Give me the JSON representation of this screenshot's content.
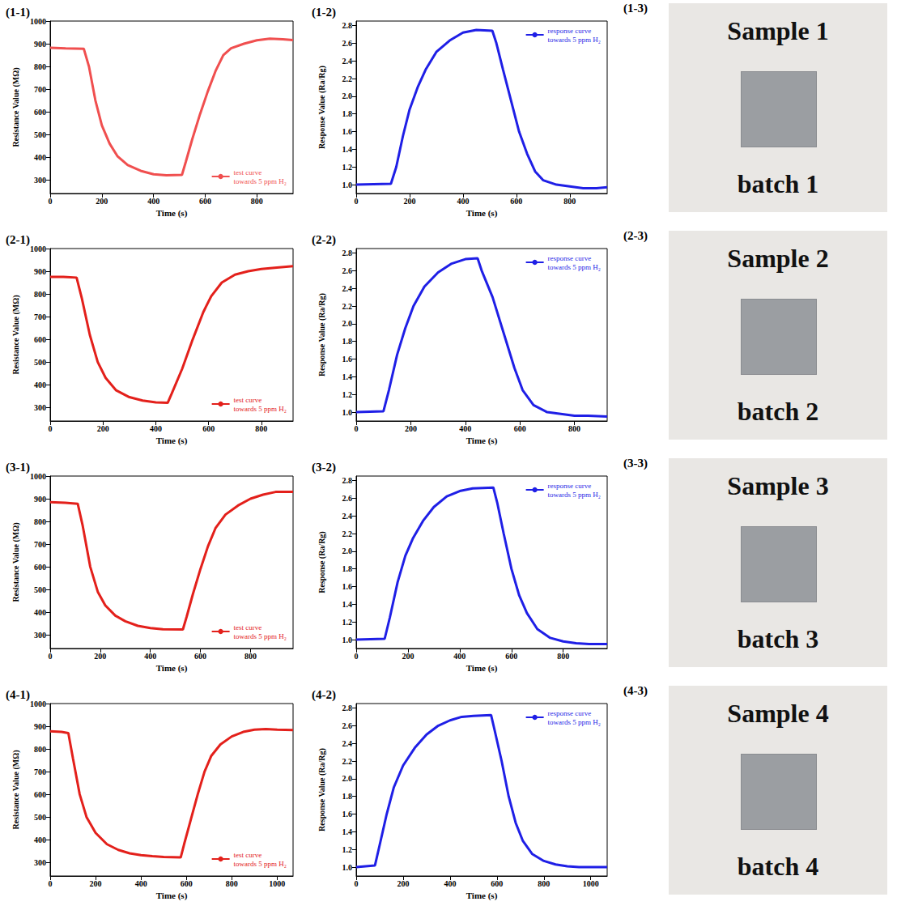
{
  "chart_data": [
    {
      "type": "line",
      "title": "(1-1)",
      "x_label": "Time (s)",
      "y_label": "Resistance Value (MΩ)",
      "xlim": [
        0,
        940
      ],
      "xticks": [
        0,
        200,
        400,
        600,
        800
      ],
      "ylim": [
        240,
        1000
      ],
      "yticks": [
        300,
        400,
        500,
        600,
        700,
        800,
        900,
        1000
      ],
      "legend": "lower right",
      "x": [
        0,
        60,
        130,
        150,
        175,
        200,
        230,
        260,
        300,
        350,
        400,
        450,
        510,
        525,
        550,
        580,
        610,
        640,
        670,
        700,
        750,
        800,
        850,
        900,
        940
      ],
      "series": [
        {
          "name": "test curve towards 5 ppm H₂",
          "color": "#f04f4f",
          "values": [
            882,
            880,
            878,
            800,
            650,
            540,
            460,
            405,
            365,
            340,
            325,
            320,
            322,
            380,
            480,
            590,
            690,
            780,
            850,
            880,
            900,
            915,
            922,
            920,
            916
          ]
        }
      ]
    },
    {
      "type": "line",
      "title": "(1-2)",
      "x_label": "Time (s)",
      "y_label": "Response Value (Ra/Rg)",
      "xlim": [
        0,
        940
      ],
      "xticks": [
        0,
        200,
        400,
        600,
        800
      ],
      "ylim": [
        0.9,
        2.85
      ],
      "yticks": [
        {
          "value": 1,
          "label": "1.0"
        },
        {
          "value": 1.2,
          "label": "1.2"
        },
        {
          "value": 1.4,
          "label": "1.4"
        },
        {
          "value": 1.6,
          "label": "1.6"
        },
        {
          "value": 1.8,
          "label": "1.8"
        },
        {
          "value": 2,
          "label": "2.0"
        },
        {
          "value": 2.2,
          "label": "2.2"
        },
        {
          "value": 2.4,
          "label": "2.4"
        },
        {
          "value": 2.6,
          "label": "2.6"
        },
        {
          "value": 2.8,
          "label": "2.8"
        }
      ],
      "legend": "upper right",
      "x": [
        0,
        130,
        150,
        175,
        200,
        230,
        260,
        300,
        350,
        400,
        450,
        510,
        525,
        550,
        580,
        610,
        640,
        670,
        700,
        750,
        800,
        850,
        900,
        940
      ],
      "series": [
        {
          "name": "response curve towards 5 ppm H₂",
          "color": "#1f1fe6",
          "values": [
            1.0,
            1.01,
            1.2,
            1.55,
            1.85,
            2.1,
            2.3,
            2.5,
            2.63,
            2.72,
            2.75,
            2.74,
            2.6,
            2.3,
            1.95,
            1.6,
            1.35,
            1.15,
            1.05,
            1.0,
            0.98,
            0.96,
            0.96,
            0.97
          ]
        }
      ]
    },
    {
      "type": "line",
      "title": "(2-1)",
      "x_label": "Time (s)",
      "y_label": "Resistance Value (MΩ)",
      "xlim": [
        0,
        920
      ],
      "xticks": [
        0,
        200,
        400,
        600,
        800
      ],
      "ylim": [
        240,
        1000
      ],
      "yticks": [
        300,
        400,
        500,
        600,
        700,
        800,
        900,
        1000
      ],
      "legend": "lower right",
      "x": [
        0,
        50,
        100,
        120,
        150,
        180,
        210,
        250,
        300,
        350,
        400,
        445,
        460,
        500,
        540,
        580,
        610,
        650,
        700,
        750,
        800,
        850,
        920
      ],
      "series": [
        {
          "name": "test curve towards 5 ppm H₂",
          "color": "#e3201b",
          "values": [
            875,
            875,
            872,
            780,
            620,
            500,
            430,
            375,
            345,
            330,
            322,
            320,
            360,
            470,
            600,
            720,
            790,
            850,
            885,
            900,
            910,
            915,
            922
          ]
        }
      ]
    },
    {
      "type": "line",
      "title": "(2-2)",
      "x_label": "Time (s)",
      "y_label": "Response Value (Ra/Rg)",
      "xlim": [
        0,
        920
      ],
      "xticks": [
        0,
        200,
        400,
        600,
        800
      ],
      "ylim": [
        0.9,
        2.85
      ],
      "yticks": [
        {
          "value": 1,
          "label": "1.0"
        },
        {
          "value": 1.2,
          "label": "1.2"
        },
        {
          "value": 1.4,
          "label": "1.4"
        },
        {
          "value": 1.6,
          "label": "1.6"
        },
        {
          "value": 1.8,
          "label": "1.8"
        },
        {
          "value": 2,
          "label": "2.0"
        },
        {
          "value": 2.2,
          "label": "2.2"
        },
        {
          "value": 2.4,
          "label": "2.4"
        },
        {
          "value": 2.6,
          "label": "2.6"
        },
        {
          "value": 2.8,
          "label": "2.8"
        }
      ],
      "legend": "upper right",
      "x": [
        0,
        100,
        120,
        150,
        180,
        210,
        250,
        300,
        350,
        400,
        445,
        460,
        500,
        540,
        580,
        610,
        650,
        700,
        750,
        800,
        850,
        920
      ],
      "series": [
        {
          "name": "response curve towards 5 ppm H₂",
          "color": "#1f1fe6",
          "values": [
            1.0,
            1.01,
            1.25,
            1.65,
            1.95,
            2.2,
            2.42,
            2.58,
            2.68,
            2.73,
            2.74,
            2.6,
            2.3,
            1.9,
            1.5,
            1.25,
            1.08,
            1.0,
            0.98,
            0.96,
            0.96,
            0.95
          ]
        }
      ]
    },
    {
      "type": "line",
      "title": "(3-1)",
      "x_label": "Time (s)",
      "y_label": "Resistance Value (MΩ)",
      "xlim": [
        0,
        970
      ],
      "xticks": [
        0,
        200,
        400,
        600,
        800
      ],
      "ylim": [
        240,
        1000
      ],
      "yticks": [
        300,
        400,
        500,
        600,
        700,
        800,
        900,
        1000
      ],
      "legend": "lower right",
      "x": [
        0,
        60,
        110,
        130,
        160,
        190,
        220,
        260,
        300,
        350,
        400,
        450,
        530,
        545,
        570,
        600,
        630,
        660,
        700,
        750,
        800,
        850,
        900,
        970
      ],
      "series": [
        {
          "name": "test curve towards 5 ppm H₂",
          "color": "#e3201b",
          "values": [
            885,
            882,
            878,
            780,
            600,
            490,
            430,
            385,
            360,
            340,
            330,
            325,
            324,
            380,
            480,
            590,
            690,
            770,
            830,
            870,
            900,
            918,
            930,
            930
          ]
        }
      ]
    },
    {
      "type": "line",
      "title": "(3-2)",
      "x_label": "Time (s)",
      "y_label": "Response (Ra/Rg)",
      "xlim": [
        0,
        970
      ],
      "xticks": [
        0,
        200,
        400,
        600,
        800
      ],
      "ylim": [
        0.9,
        2.85
      ],
      "yticks": [
        {
          "value": 1,
          "label": "1.0"
        },
        {
          "value": 1.2,
          "label": "1.2"
        },
        {
          "value": 1.4,
          "label": "1.4"
        },
        {
          "value": 1.6,
          "label": "1.6"
        },
        {
          "value": 1.8,
          "label": "1.8"
        },
        {
          "value": 2,
          "label": "2.0"
        },
        {
          "value": 2.2,
          "label": "2.2"
        },
        {
          "value": 2.4,
          "label": "2.4"
        },
        {
          "value": 2.6,
          "label": "2.6"
        },
        {
          "value": 2.8,
          "label": "2.8"
        }
      ],
      "legend": "upper right",
      "x": [
        0,
        110,
        130,
        160,
        190,
        220,
        260,
        300,
        350,
        400,
        450,
        530,
        545,
        570,
        600,
        630,
        660,
        700,
        750,
        800,
        850,
        900,
        970
      ],
      "series": [
        {
          "name": "response curve towards 5 ppm H₂",
          "color": "#1f1fe6",
          "values": [
            1.0,
            1.01,
            1.25,
            1.65,
            1.95,
            2.15,
            2.35,
            2.5,
            2.62,
            2.68,
            2.71,
            2.72,
            2.55,
            2.2,
            1.8,
            1.5,
            1.3,
            1.12,
            1.02,
            0.98,
            0.96,
            0.95,
            0.95
          ]
        }
      ]
    },
    {
      "type": "line",
      "title": "(4-1)",
      "x_label": "Time (s)",
      "y_label": "Resistance Value (MΩ)",
      "xlim": [
        0,
        1070
      ],
      "xticks": [
        0,
        200,
        400,
        600,
        800,
        1000
      ],
      "ylim": [
        240,
        1000
      ],
      "yticks": [
        300,
        400,
        500,
        600,
        700,
        800,
        900,
        1000
      ],
      "legend": "lower right",
      "x": [
        0,
        50,
        80,
        100,
        130,
        160,
        200,
        250,
        300,
        350,
        400,
        450,
        500,
        575,
        590,
        620,
        650,
        680,
        710,
        750,
        800,
        850,
        900,
        950,
        1000,
        1070
      ],
      "series": [
        {
          "name": "test curve towards 5 ppm H₂",
          "color": "#e3201b",
          "values": [
            878,
            875,
            870,
            760,
            600,
            500,
            430,
            380,
            355,
            340,
            332,
            327,
            324,
            322,
            380,
            490,
            600,
            700,
            770,
            820,
            855,
            875,
            885,
            888,
            885,
            883
          ]
        }
      ]
    },
    {
      "type": "line",
      "title": "(4-2)",
      "x_label": "Time (s)",
      "y_label": "Response Value (Ra/Rg)",
      "xlim": [
        0,
        1070
      ],
      "xticks": [
        0,
        200,
        400,
        600,
        800,
        1000
      ],
      "ylim": [
        0.9,
        2.85
      ],
      "yticks": [
        {
          "value": 1,
          "label": "1.0"
        },
        {
          "value": 1.2,
          "label": "1.2"
        },
        {
          "value": 1.4,
          "label": "1.4"
        },
        {
          "value": 1.6,
          "label": "1.6"
        },
        {
          "value": 1.8,
          "label": "1.8"
        },
        {
          "value": 2,
          "label": "2.0"
        },
        {
          "value": 2.2,
          "label": "2.2"
        },
        {
          "value": 2.4,
          "label": "2.4"
        },
        {
          "value": 2.6,
          "label": "2.6"
        },
        {
          "value": 2.8,
          "label": "2.8"
        }
      ],
      "legend": "upper right",
      "x": [
        0,
        80,
        100,
        130,
        160,
        200,
        250,
        300,
        350,
        400,
        450,
        500,
        575,
        590,
        620,
        650,
        680,
        710,
        750,
        800,
        850,
        900,
        950,
        1000,
        1070
      ],
      "series": [
        {
          "name": "response curve towards 5 ppm H₂",
          "color": "#1f1fe6",
          "values": [
            1.0,
            1.02,
            1.25,
            1.6,
            1.9,
            2.15,
            2.35,
            2.5,
            2.6,
            2.66,
            2.7,
            2.71,
            2.72,
            2.55,
            2.2,
            1.8,
            1.5,
            1.3,
            1.15,
            1.07,
            1.03,
            1.01,
            1.0,
            1.0,
            1.0
          ]
        }
      ]
    }
  ],
  "photos": [
    {
      "label": "(1-3)",
      "title": "Sample 1",
      "caption": "batch 1"
    },
    {
      "label": "(2-3)",
      "title": "Sample 2",
      "caption": "batch 2"
    },
    {
      "label": "(3-3)",
      "title": "Sample 3",
      "caption": "batch 3"
    },
    {
      "label": "(4-3)",
      "title": "Sample 4",
      "caption": "batch 4"
    }
  ]
}
